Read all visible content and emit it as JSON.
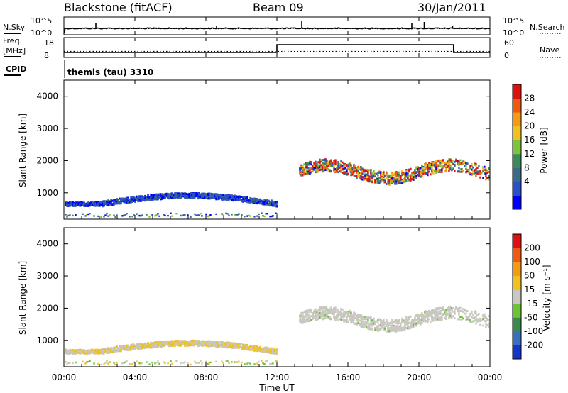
{
  "header": {
    "radar": "Blackstone (fitACF)",
    "beam": "Beam 09",
    "date": "30/Jan/2011"
  },
  "top_panels": {
    "nsky_label": "N.Sky",
    "nsearch_label": "N.Search",
    "noise_ticks": [
      "10^5",
      "10^0"
    ],
    "freq_label": [
      "Freq.",
      "[MHz]"
    ],
    "freq_ticks": [
      "18",
      "8"
    ],
    "nave_label": "Nave",
    "nave_ticks": [
      "60",
      "0"
    ],
    "cpid_label": "CPID",
    "cpid_text": "themis (tau) 3310"
  },
  "chart_data": [
    {
      "type": "heatmap",
      "name": "power",
      "ylabel": "Slant Range [km]",
      "yticks": [
        "4000",
        "3000",
        "2000",
        "1000"
      ],
      "ylim": [
        180,
        4500
      ],
      "xlim": [
        0,
        24
      ],
      "colorbar": {
        "label": "Power [dB]",
        "ticks": [
          "28",
          "24",
          "20",
          "16",
          "12",
          "8",
          "4"
        ],
        "colors": [
          "#0000ff",
          "#2a50c8",
          "#3a6a86",
          "#3c8a5c",
          "#7cc43c",
          "#f0c020",
          "#f59a14",
          "#ef5a10",
          "#e01010"
        ],
        "range": [
          0,
          32
        ]
      }
    },
    {
      "type": "heatmap",
      "name": "velocity",
      "ylabel": "Slant Range [km]",
      "yticks": [
        "4000",
        "3000",
        "2000",
        "1000"
      ],
      "ylim": [
        180,
        4500
      ],
      "xlim": [
        0,
        24
      ],
      "xlabel": "Time UT",
      "xticks": [
        "00:00",
        "04:00",
        "08:00",
        "12:00",
        "16:00",
        "20:00",
        "00:00"
      ],
      "colorbar": {
        "label": "Velocity [m s⁻¹]",
        "ticks": [
          "200",
          "100",
          "50",
          "15",
          "-15",
          "-50",
          "-100",
          "-200"
        ],
        "colors": [
          "#1434cc",
          "#3a6ec0",
          "#3c8a50",
          "#6cc434",
          "#c8c8c0",
          "#f0c020",
          "#f59a14",
          "#ef5a10",
          "#e01010"
        ]
      }
    }
  ]
}
